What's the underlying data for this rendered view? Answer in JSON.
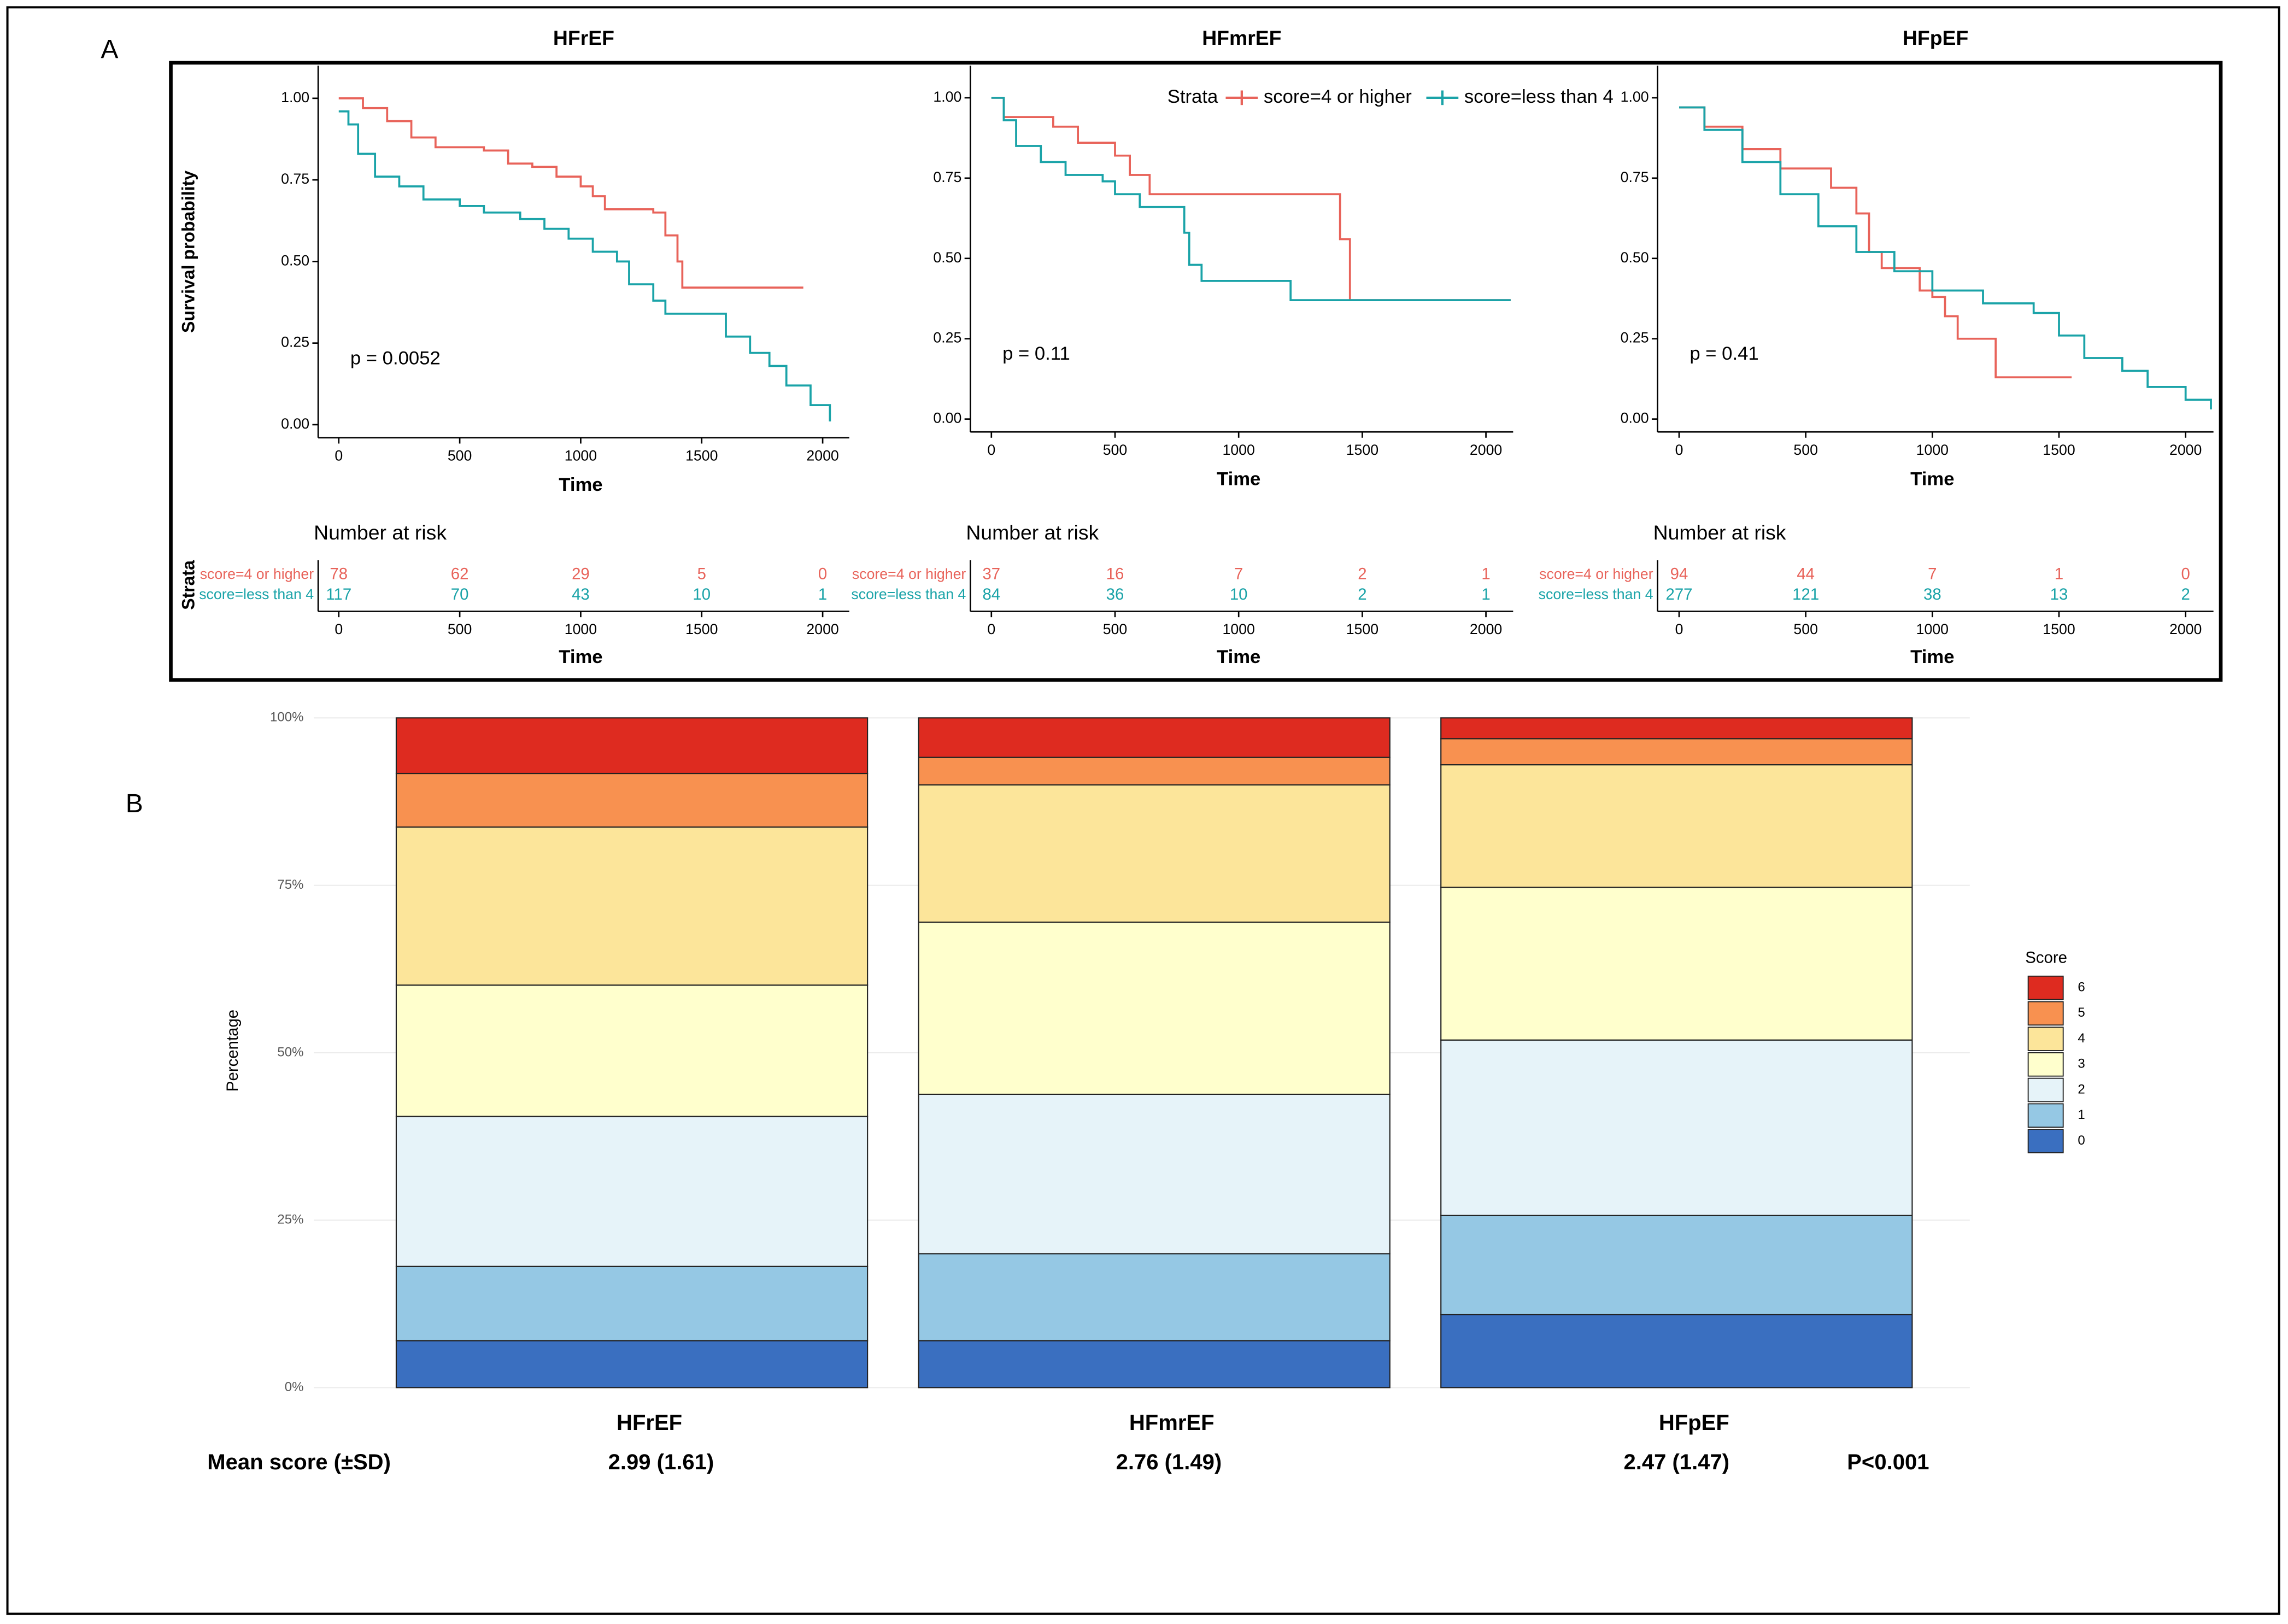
{
  "panels": {
    "a": "A",
    "b": "B"
  },
  "chart_data": [
    {
      "type": "step",
      "title": "HFrEF",
      "x_label": "Time",
      "y_label": "Survival probability",
      "annotation": "p = 0.0052",
      "xlim": [
        -85,
        2110
      ],
      "ylim": [
        -0.04,
        1.1
      ],
      "xticks": [
        0,
        500,
        1000,
        1500,
        2000
      ],
      "yticks": [
        {
          "value": 0,
          "label": "0.00"
        },
        {
          "value": 0.25,
          "label": "0.25"
        },
        {
          "value": 0.5,
          "label": "0.50"
        },
        {
          "value": 0.75,
          "label": "0.75"
        },
        {
          "value": 1,
          "label": "1.00"
        }
      ],
      "series": [
        {
          "name": "score=4 or higher",
          "color": "#e8635a",
          "x": [
            0,
            100,
            200,
            300,
            400,
            600,
            700,
            800,
            900,
            1000,
            1050,
            1100,
            1300,
            1350,
            1400,
            1420,
            1920
          ],
          "values": [
            1,
            0.97,
            0.93,
            0.88,
            0.85,
            0.84,
            0.8,
            0.79,
            0.76,
            0.73,
            0.7,
            0.66,
            0.65,
            0.58,
            0.5,
            0.42,
            0.42
          ]
        },
        {
          "name": "score=less than 4",
          "color": "#1aa3a8",
          "x": [
            0,
            40,
            80,
            150,
            250,
            350,
            500,
            600,
            750,
            850,
            950,
            1050,
            1150,
            1200,
            1300,
            1350,
            1580,
            1600,
            1700,
            1780,
            1850,
            1950,
            2030
          ],
          "values": [
            0.96,
            0.92,
            0.83,
            0.76,
            0.73,
            0.69,
            0.67,
            0.65,
            0.63,
            0.6,
            0.57,
            0.53,
            0.5,
            0.43,
            0.38,
            0.34,
            0.34,
            0.27,
            0.22,
            0.18,
            0.12,
            0.06,
            0.01
          ]
        }
      ],
      "risk_table": {
        "title": "Number at risk",
        "strata_label": "Strata",
        "x": [
          0,
          500,
          1000,
          1500,
          2000
        ],
        "rows": [
          [
            78,
            62,
            29,
            5,
            0
          ],
          [
            117,
            70,
            43,
            10,
            1
          ]
        ]
      }
    },
    {
      "type": "step",
      "title": "HFmrEF",
      "x_label": "Time",
      "annotation": "p = 0.11",
      "legend": true,
      "legend_title": "Strata",
      "xlim": [
        -85,
        2110
      ],
      "ylim": [
        -0.04,
        1.1
      ],
      "xticks": [
        0,
        500,
        1000,
        1500,
        2000
      ],
      "yticks": [
        {
          "value": 0,
          "label": "0.00"
        },
        {
          "value": 0.25,
          "label": "0.25"
        },
        {
          "value": 0.5,
          "label": "0.50"
        },
        {
          "value": 0.75,
          "label": "0.75"
        },
        {
          "value": 1,
          "label": "1.00"
        }
      ],
      "series": [
        {
          "name": "score=4 or higher",
          "color": "#e8635a",
          "x": [
            0,
            50,
            250,
            350,
            500,
            560,
            640,
            1400,
            1410,
            1450,
            2100
          ],
          "values": [
            1,
            0.94,
            0.91,
            0.86,
            0.82,
            0.76,
            0.7,
            0.7,
            0.56,
            0.37,
            0.37
          ]
        },
        {
          "name": "score=less than 4",
          "color": "#1aa3a8",
          "x": [
            0,
            50,
            100,
            200,
            300,
            450,
            500,
            600,
            780,
            800,
            850,
            1200,
            1210,
            2100
          ],
          "values": [
            1,
            0.93,
            0.85,
            0.8,
            0.76,
            0.74,
            0.7,
            0.66,
            0.58,
            0.48,
            0.43,
            0.43,
            0.37,
            0.37
          ]
        }
      ],
      "risk_table": {
        "title": "Number at risk",
        "x": [
          0,
          500,
          1000,
          1500,
          2000
        ],
        "rows": [
          [
            37,
            16,
            7,
            2,
            1
          ],
          [
            84,
            36,
            10,
            2,
            1
          ]
        ]
      }
    },
    {
      "type": "step",
      "title": "HFpEF",
      "x_label": "Time",
      "annotation": "p = 0.41",
      "xlim": [
        -85,
        2110
      ],
      "ylim": [
        -0.04,
        1.1
      ],
      "xticks": [
        0,
        500,
        1000,
        1500,
        2000
      ],
      "yticks": [
        {
          "value": 0,
          "label": "0.00"
        },
        {
          "value": 0.25,
          "label": "0.25"
        },
        {
          "value": 0.5,
          "label": "0.50"
        },
        {
          "value": 0.75,
          "label": "0.75"
        },
        {
          "value": 1,
          "label": "1.00"
        }
      ],
      "series": [
        {
          "name": "score=4 or higher",
          "color": "#e8635a",
          "x": [
            0,
            100,
            250,
            400,
            600,
            700,
            750,
            800,
            950,
            1000,
            1050,
            1100,
            1250,
            1550
          ],
          "values": [
            0.97,
            0.91,
            0.84,
            0.78,
            0.72,
            0.64,
            0.52,
            0.47,
            0.4,
            0.38,
            0.32,
            0.25,
            0.13,
            0.13
          ]
        },
        {
          "name": "score=less than 4",
          "color": "#1aa3a8",
          "x": [
            0,
            100,
            250,
            400,
            550,
            700,
            850,
            1000,
            1200,
            1400,
            1500,
            1600,
            1750,
            1850,
            2000,
            2100
          ],
          "values": [
            0.97,
            0.9,
            0.8,
            0.7,
            0.6,
            0.52,
            0.46,
            0.4,
            0.36,
            0.33,
            0.26,
            0.19,
            0.15,
            0.1,
            0.06,
            0.03
          ]
        }
      ],
      "risk_table": {
        "title": "Number at risk",
        "x": [
          0,
          500,
          1000,
          1500,
          2000
        ],
        "rows": [
          [
            94,
            44,
            7,
            1,
            0
          ],
          [
            277,
            121,
            38,
            13,
            2
          ]
        ]
      }
    },
    {
      "type": "stacked_bar",
      "y_label": "Percentage",
      "legend_title": "Score",
      "categories": [
        "HFrEF",
        "HFmrEF",
        "HFpEF"
      ],
      "ylim": [
        0,
        100
      ],
      "yticks": [
        {
          "value": 0,
          "label": "0%"
        },
        {
          "value": 25,
          "label": "25%"
        },
        {
          "value": 50,
          "label": "50%"
        },
        {
          "value": 75,
          "label": "75%"
        },
        {
          "value": 100,
          "label": "100%"
        }
      ],
      "grid": true,
      "series": [
        {
          "name": "0",
          "color": "#3a6fc0",
          "values": [
            7.0,
            7.0,
            10.9
          ]
        },
        {
          "name": "1",
          "color": "#95c8e4",
          "values": [
            11.1,
            13.0,
            14.8
          ]
        },
        {
          "name": "2",
          "color": "#e6f3f9",
          "values": [
            22.4,
            23.8,
            26.2
          ]
        },
        {
          "name": "3",
          "color": "#ffffcd",
          "values": [
            19.6,
            25.7,
            22.8
          ]
        },
        {
          "name": "4",
          "color": "#fce59a",
          "values": [
            23.6,
            20.5,
            18.3
          ]
        },
        {
          "name": "5",
          "color": "#f89150",
          "values": [
            8.0,
            4.1,
            3.9
          ]
        },
        {
          "name": "6",
          "color": "#de2b20",
          "values": [
            8.3,
            5.9,
            3.1
          ]
        }
      ],
      "mean_label": "Mean score (±SD)",
      "mean_scores": [
        "2.99 (1.61)",
        "2.76 (1.49)",
        "2.47 (1.47)"
      ],
      "p_value": "P<0.001"
    }
  ]
}
